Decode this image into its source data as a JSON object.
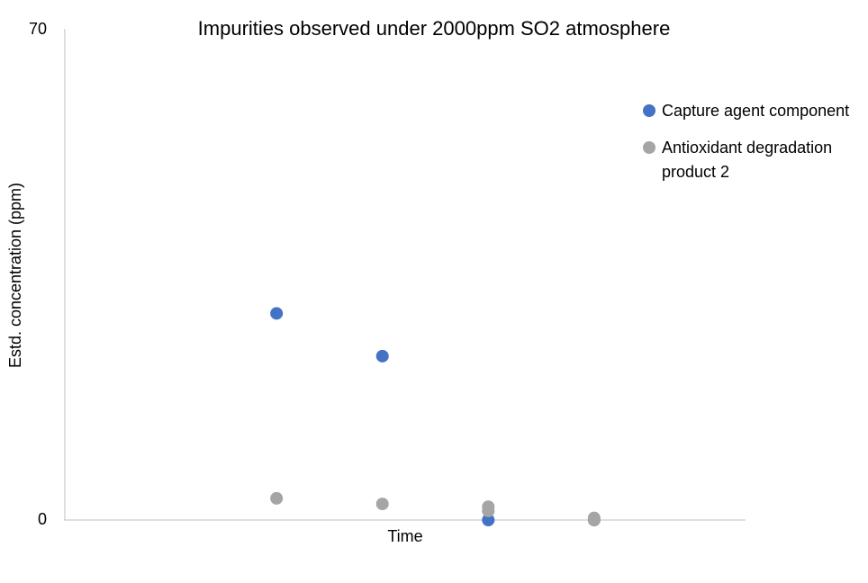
{
  "chart_data": {
    "type": "scatter",
    "title": "Impurities observed under 2000ppm SO2 atmosphere",
    "x_label": "Time",
    "y_label": "Estd. concentration (ppm)",
    "xlim": [
      0,
      6.43
    ],
    "ylim": [
      0,
      70
    ],
    "yticks": [
      0,
      70
    ],
    "legend": "right",
    "series": [
      {
        "name": "Capture agent component",
        "color": "#4472c4",
        "x": [
          2,
          3,
          4,
          5
        ],
        "values": [
          29.5,
          23.4,
          0,
          0
        ]
      },
      {
        "name": "Antioxidant degradation product 2",
        "color": "#a5a5a5",
        "x": [
          2,
          3,
          4,
          4,
          5,
          5
        ],
        "values": [
          3.1,
          2.3,
          1.9,
          1.3,
          0.3,
          0
        ]
      }
    ]
  }
}
